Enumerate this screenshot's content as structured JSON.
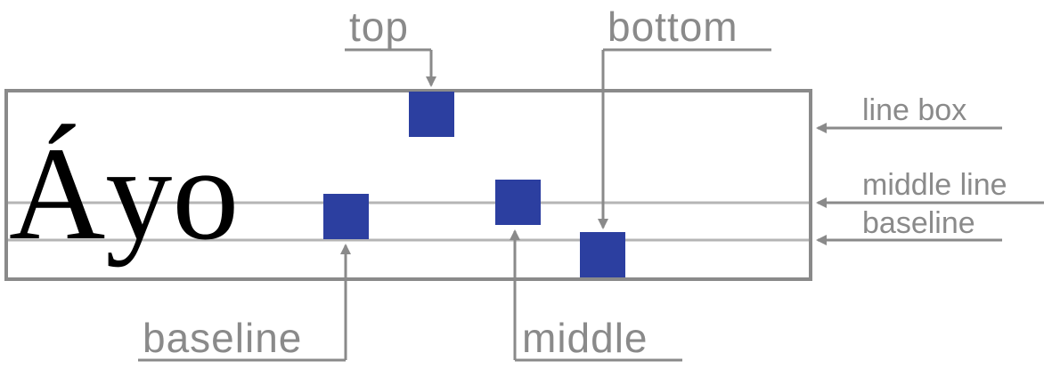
{
  "sample_text": "Áyo",
  "labels": {
    "top": "top",
    "bottom": "bottom",
    "baseline_bottom": "baseline",
    "middle": "middle",
    "line_box": "line box",
    "middle_line": "middle line",
    "baseline_right": "baseline"
  },
  "colors": {
    "box_fill": "#2c3fa0",
    "line_gray": "#8a8a8a",
    "guide_gray": "#b5b5b5"
  }
}
